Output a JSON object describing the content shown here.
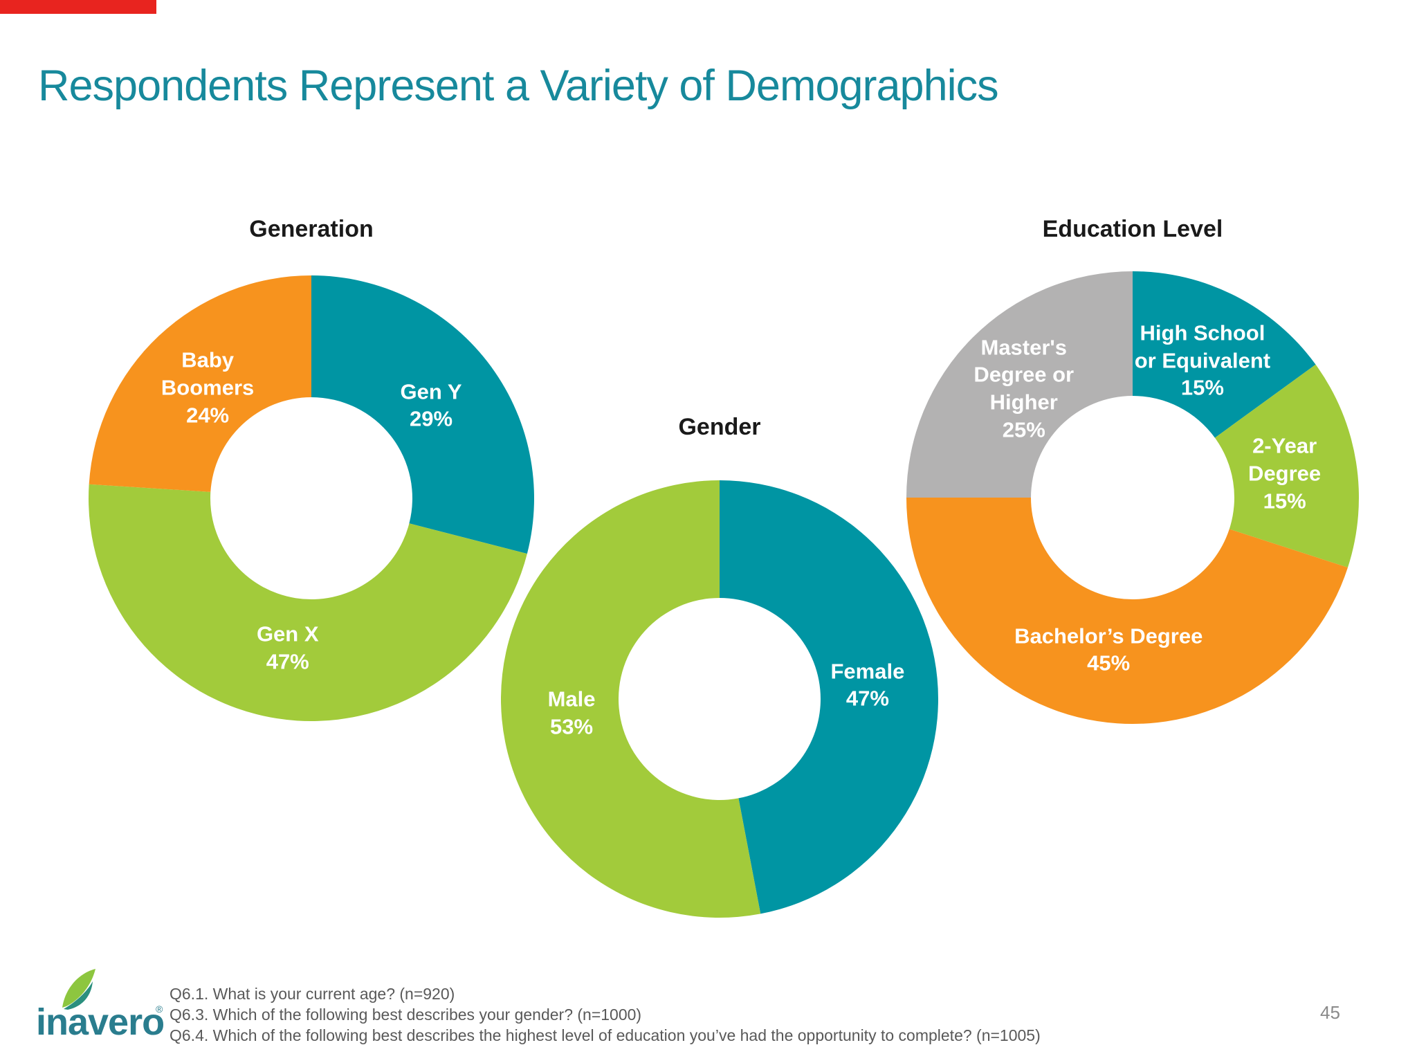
{
  "page": {
    "title": "Respondents Represent a Variety of Demographics",
    "page_number": "45",
    "accent_bar_color": "#e8241f",
    "title_color": "#17899c"
  },
  "logo": {
    "text": "inavero",
    "registered_mark": "®"
  },
  "footer": {
    "notes": [
      "Q6.1. What is your current age? (n=920)",
      "Q6.3. Which of the following best describes your gender? (n=1000)",
      "Q6.4. Which of the following best describes the highest level of education you’ve had the opportunity to complete? (n=1005)"
    ]
  },
  "chart_data": [
    {
      "type": "pie",
      "subtype": "donut",
      "title": "Generation",
      "start_angle": "12-oclock",
      "direction": "clockwise",
      "hole_ratio": 0.45,
      "labels_inside": true,
      "slices": [
        {
          "label": "Gen Y",
          "value": 29,
          "color": "#0095a3",
          "lines": [
            "Gen Y",
            "29%"
          ]
        },
        {
          "label": "Gen X",
          "value": 47,
          "color": "#a2cb3b",
          "lines": [
            "Gen X",
            "47%"
          ]
        },
        {
          "label": "Baby Boomers",
          "value": 24,
          "color": "#f7931e",
          "lines": [
            "Baby",
            "Boomers",
            "24%"
          ]
        }
      ]
    },
    {
      "type": "pie",
      "subtype": "donut",
      "title": "Gender",
      "start_angle": "12-oclock",
      "direction": "clockwise",
      "hole_ratio": 0.45,
      "labels_inside": true,
      "slices": [
        {
          "label": "Female",
          "value": 47,
          "color": "#0095a3",
          "lines": [
            "Female",
            "47%"
          ]
        },
        {
          "label": "Male",
          "value": 53,
          "color": "#a2cb3b",
          "lines": [
            "Male",
            "53%"
          ]
        }
      ]
    },
    {
      "type": "pie",
      "subtype": "donut",
      "title": "Education Level",
      "start_angle": "12-oclock",
      "direction": "clockwise",
      "hole_ratio": 0.45,
      "labels_inside": true,
      "slices": [
        {
          "label": "High School or Equivalent",
          "value": 15,
          "color": "#0095a3",
          "lines": [
            "High School",
            "or Equivalent",
            "15%"
          ]
        },
        {
          "label": "2-Year Degree",
          "value": 15,
          "color": "#a2cb3b",
          "lines": [
            "2-Year",
            "Degree",
            "15%"
          ]
        },
        {
          "label": "Bachelor’s Degree",
          "value": 45,
          "color": "#f7931e",
          "lines": [
            "Bachelor’s Degree",
            "45%"
          ]
        },
        {
          "label": "Master's Degree or Higher",
          "value": 25,
          "color": "#b3b2b2",
          "lines": [
            "Master's",
            "Degree or",
            "Higher",
            "25%"
          ]
        }
      ]
    }
  ]
}
